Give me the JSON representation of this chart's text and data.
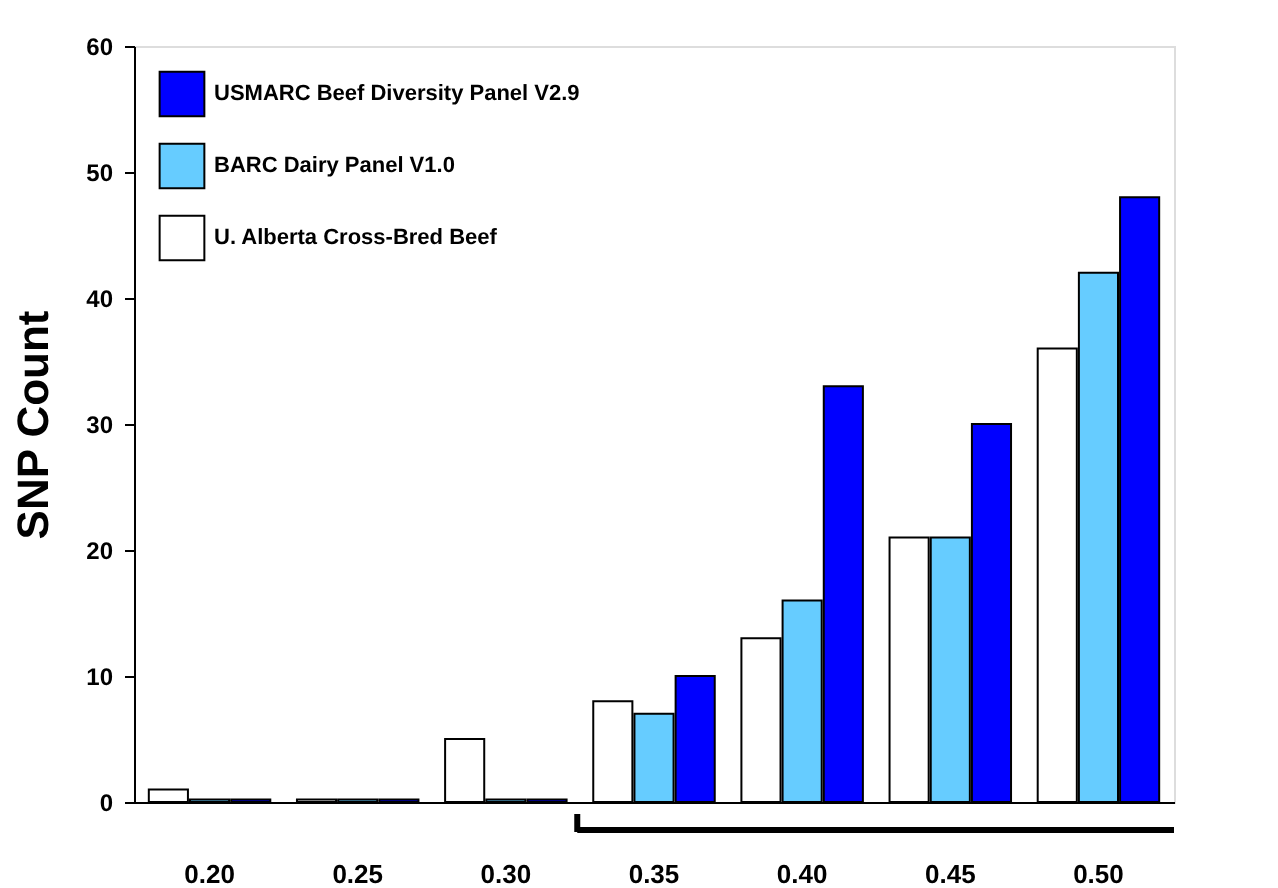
{
  "chart_data": {
    "type": "bar",
    "ylabel": "SNP Count",
    "categories": [
      "0.20",
      "0.25",
      "0.30",
      "0.35",
      "0.40",
      "0.45",
      "0.50"
    ],
    "series": [
      {
        "name": "USMARC Beef Diversity Panel V2.9",
        "color": "#0000ff",
        "values": [
          0.2,
          0.2,
          0.2,
          10,
          33,
          30,
          48
        ]
      },
      {
        "name": "BARC Dairy Panel V1.0",
        "color": "#66ccff",
        "values": [
          0.2,
          0.2,
          0.2,
          7,
          16,
          21,
          42
        ]
      },
      {
        "name": "U. Alberta Cross-Bred Beef",
        "color": "#ffffff",
        "values": [
          1,
          0.2,
          5,
          8,
          13,
          21,
          36
        ]
      }
    ],
    "ylim": [
      0,
      60
    ],
    "yticks": [
      0,
      10,
      20,
      30,
      40,
      50,
      60
    ],
    "grid": false,
    "legend": "top left"
  }
}
